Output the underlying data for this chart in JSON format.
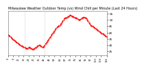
{
  "title": "Milwaukee Weather Outdoor Temp (vs) Wind Chill per Minute (Last 24 Hours)",
  "title_fontsize": 3.5,
  "background_color": "#ffffff",
  "line_color": "#ff0000",
  "ylim": [
    22,
    57
  ],
  "yticks": [
    25,
    30,
    35,
    40,
    45,
    50,
    55
  ],
  "vline_positions": [
    0.17,
    0.37
  ],
  "y_data": [
    38,
    37.5,
    37,
    36.5,
    35.5,
    35,
    34.5,
    34,
    33.5,
    33,
    32,
    31.5,
    31,
    30.5,
    30,
    29.5,
    29.5,
    29,
    28.5,
    28.5,
    28,
    27.5,
    27.5,
    27.5,
    28,
    28.5,
    28,
    27.5,
    27,
    27,
    27,
    27.5,
    28,
    28.5,
    29,
    29.5,
    30,
    30,
    29.5,
    29,
    28.5,
    28.5,
    29,
    30,
    31,
    32,
    33,
    34,
    35,
    36,
    37,
    38,
    39,
    40,
    41,
    42,
    43,
    44,
    44.5,
    45,
    45.5,
    46,
    47,
    48,
    49,
    50,
    51,
    51.5,
    52,
    52,
    52.5,
    53,
    53.5,
    54,
    53.5,
    53,
    53,
    52.5,
    52,
    52,
    51.5,
    51,
    50.5,
    50,
    50,
    50.5,
    51,
    51.5,
    52,
    52.5,
    52,
    51.5,
    51,
    50,
    49,
    48,
    47,
    46,
    45.5,
    45,
    44.5,
    44,
    43.5,
    43,
    42.5,
    42,
    41.5,
    41,
    40.5,
    40,
    39.5,
    39,
    38.5,
    38,
    37.5,
    37,
    36.5
  ],
  "xtick_fontsize": 2.5,
  "ytick_fontsize": 3.0,
  "linewidth": 0.7,
  "linestyle": "--",
  "marker": ".",
  "markersize": 1.0
}
